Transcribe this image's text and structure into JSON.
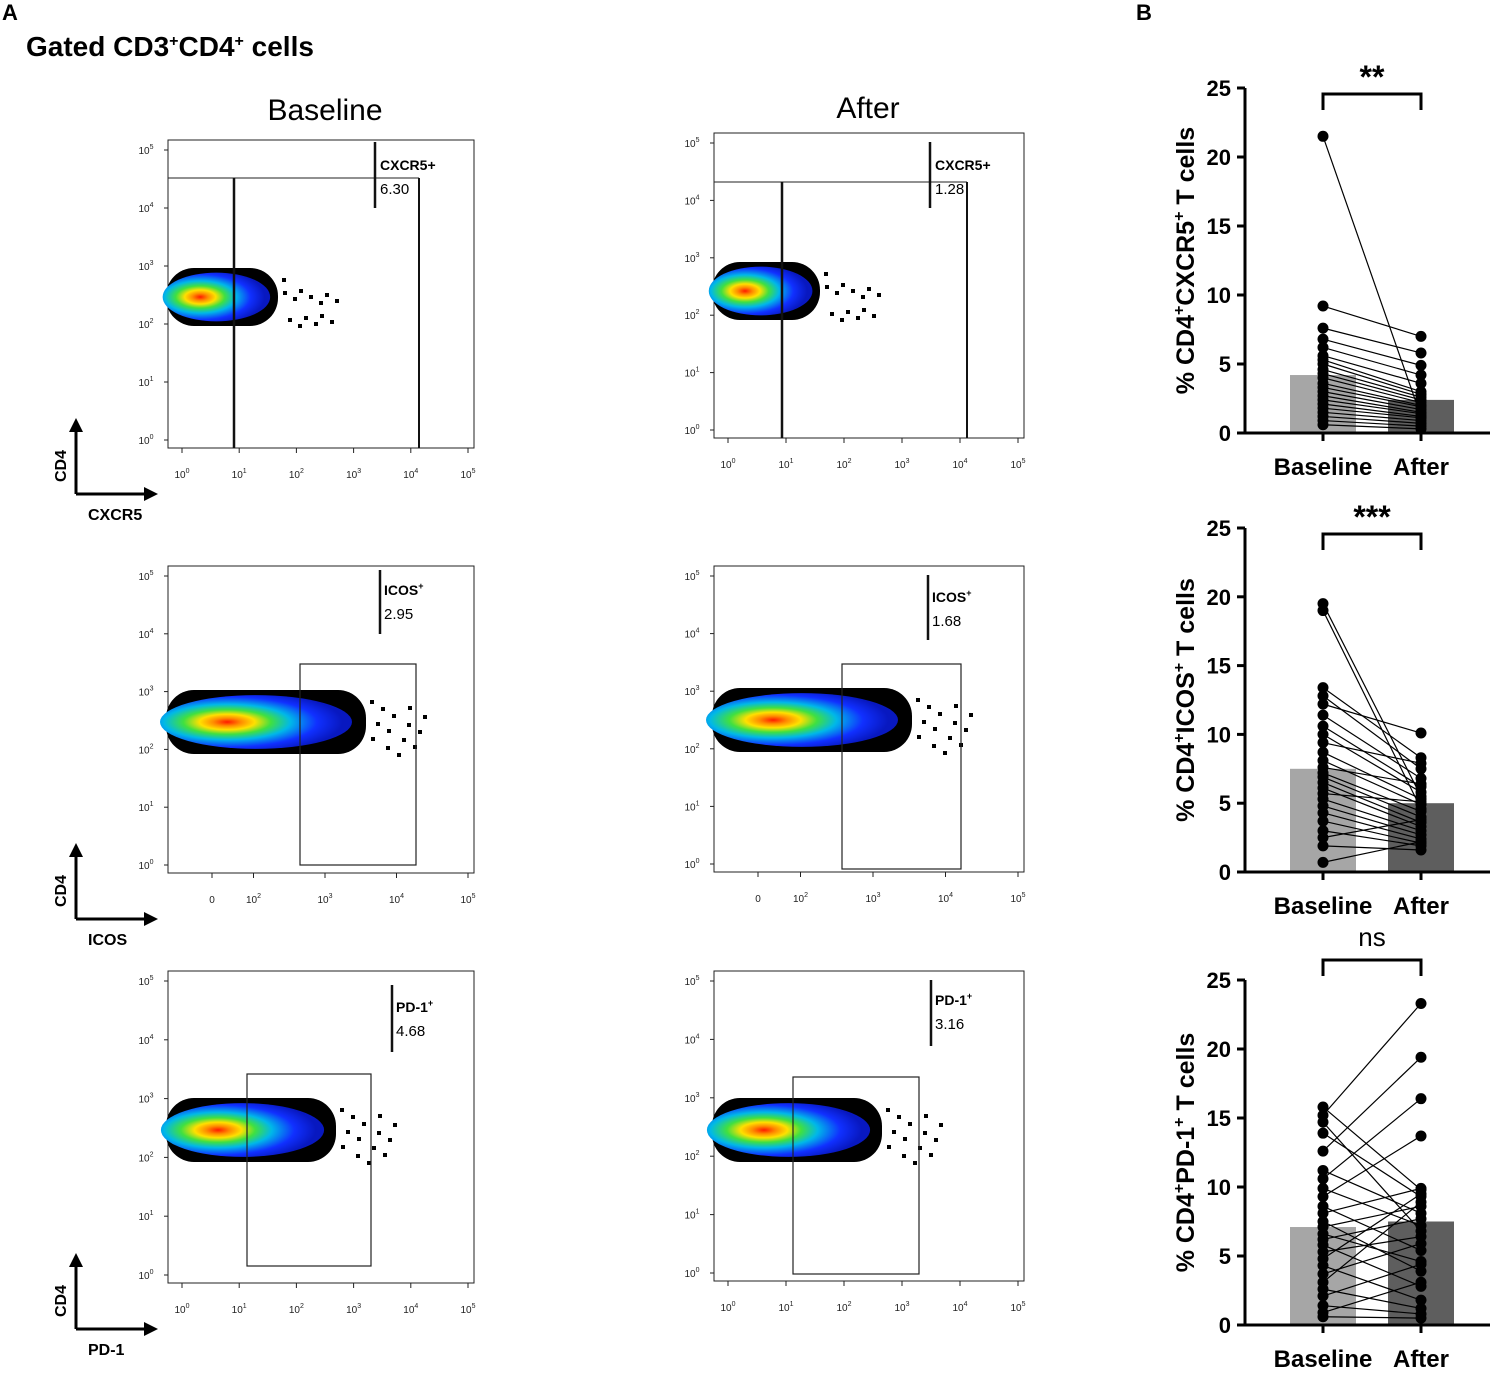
{
  "panel_a_letter": "A",
  "panel_b_letter": "B",
  "gated_title": "Gated CD3",
  "gated_sup1": "+",
  "gated_mid": "CD4",
  "gated_sup2": "+",
  "gated_tail": " cells",
  "columns": [
    "Baseline",
    "After"
  ],
  "colors": {
    "bar_baseline": "#a6a6a6",
    "bar_after": "#5e5e5e",
    "dot": "#000000",
    "density_hot": "#ff1a00",
    "density_mid": "#00c060",
    "density_cool": "#0020ff"
  },
  "flow_rows": [
    {
      "marker": "CXCR5",
      "y_axis": "CD4",
      "gate_label_base": "CXCR5+",
      "gate_label_sup": "",
      "baseline_value": "6.30",
      "after_value": "1.28",
      "x_ticks": [
        "10^0",
        "10^1",
        "10^2",
        "10^3",
        "10^4",
        "10^5"
      ]
    },
    {
      "marker": "ICOS",
      "y_axis": "CD4",
      "gate_label_base": "ICOS",
      "gate_label_sup": "+",
      "baseline_value": "2.95",
      "after_value": "1.68",
      "x_ticks": [
        "0",
        "10^2",
        "10^3",
        "10^4",
        "10^5"
      ]
    },
    {
      "marker": "PD-1",
      "y_axis": "CD4",
      "gate_label_base": "PD-1",
      "gate_label_sup": "+",
      "baseline_value": "4.68",
      "after_value": "3.16",
      "x_ticks": [
        "10^0",
        "10^1",
        "10^2",
        "10^3",
        "10^4",
        "10^5"
      ]
    }
  ],
  "y_ticks_flow": [
    "10^0",
    "10^1",
    "10^2",
    "10^3",
    "10^4",
    "10^5"
  ],
  "chart_data": [
    {
      "type": "bar",
      "title": "",
      "ylabel_parts": [
        "% CD4",
        "+",
        "CXCR5",
        "+",
        " T cells"
      ],
      "categories": [
        "Baseline",
        "After"
      ],
      "means": [
        4.2,
        2.4
      ],
      "ylim": [
        0,
        25
      ],
      "yticks": [
        0,
        5,
        10,
        15,
        20,
        25
      ],
      "significance": "**",
      "pairs": [
        [
          21.5,
          1.2
        ],
        [
          9.2,
          7.0
        ],
        [
          7.6,
          5.8
        ],
        [
          6.8,
          4.9
        ],
        [
          6.2,
          4.2
        ],
        [
          5.6,
          3.6
        ],
        [
          5.3,
          3.0
        ],
        [
          5.0,
          2.8
        ],
        [
          4.6,
          2.6
        ],
        [
          4.3,
          2.4
        ],
        [
          4.0,
          2.2
        ],
        [
          3.6,
          2.0
        ],
        [
          3.3,
          1.9
        ],
        [
          3.0,
          1.7
        ],
        [
          2.7,
          1.5
        ],
        [
          2.4,
          1.4
        ],
        [
          2.1,
          1.2
        ],
        [
          1.8,
          1.1
        ],
        [
          1.5,
          0.9
        ],
        [
          1.2,
          0.7
        ],
        [
          0.9,
          0.5
        ],
        [
          0.6,
          0.3
        ]
      ]
    },
    {
      "type": "bar",
      "title": "",
      "ylabel_parts": [
        "% CD4",
        "+",
        "ICOS",
        "+",
        " T cells"
      ],
      "categories": [
        "Baseline",
        "After"
      ],
      "means": [
        7.5,
        5.0
      ],
      "ylim": [
        0,
        25
      ],
      "yticks": [
        0,
        5,
        10,
        15,
        20,
        25
      ],
      "significance": "***",
      "pairs": [
        [
          19.5,
          5.5
        ],
        [
          19.0,
          4.6
        ],
        [
          13.4,
          8.3
        ],
        [
          12.8,
          7.5
        ],
        [
          12.2,
          10.1
        ],
        [
          11.4,
          6.8
        ],
        [
          10.6,
          6.2
        ],
        [
          10.0,
          5.8
        ],
        [
          9.4,
          7.9
        ],
        [
          8.7,
          5.3
        ],
        [
          8.1,
          4.9
        ],
        [
          7.6,
          6.4
        ],
        [
          7.2,
          4.4
        ],
        [
          6.9,
          4.0
        ],
        [
          6.5,
          3.6
        ],
        [
          6.1,
          3.3
        ],
        [
          5.7,
          5.1
        ],
        [
          5.3,
          3.0
        ],
        [
          4.8,
          2.7
        ],
        [
          4.3,
          2.4
        ],
        [
          3.7,
          2.1
        ],
        [
          3.0,
          1.9
        ],
        [
          2.5,
          3.8
        ],
        [
          1.9,
          1.6
        ],
        [
          0.7,
          2.2
        ]
      ]
    },
    {
      "type": "bar",
      "title": "",
      "ylabel_parts": [
        "% CD4",
        "+",
        "PD-1",
        "+",
        " T cells"
      ],
      "categories": [
        "Baseline",
        "After"
      ],
      "means": [
        7.1,
        7.5
      ],
      "ylim": [
        0,
        25
      ],
      "yticks": [
        0,
        5,
        10,
        15,
        20,
        25
      ],
      "significance": "ns",
      "pairs": [
        [
          15.8,
          9.8
        ],
        [
          15.2,
          23.3
        ],
        [
          14.7,
          6.8
        ],
        [
          13.9,
          9.3
        ],
        [
          12.6,
          19.4
        ],
        [
          11.2,
          8.1
        ],
        [
          10.6,
          16.4
        ],
        [
          9.9,
          7.2
        ],
        [
          9.3,
          13.7
        ],
        [
          8.6,
          5.4
        ],
        [
          8.1,
          9.9
        ],
        [
          7.5,
          3.9
        ],
        [
          7.1,
          8.6
        ],
        [
          6.6,
          4.6
        ],
        [
          6.2,
          7.7
        ],
        [
          5.8,
          2.8
        ],
        [
          5.3,
          6.4
        ],
        [
          4.8,
          9.5
        ],
        [
          4.3,
          1.8
        ],
        [
          3.7,
          5.9
        ],
        [
          3.1,
          8.9
        ],
        [
          2.6,
          1.2
        ],
        [
          2.1,
          4.4
        ],
        [
          1.4,
          0.8
        ],
        [
          0.9,
          3.1
        ],
        [
          0.6,
          0.5
        ]
      ]
    }
  ]
}
